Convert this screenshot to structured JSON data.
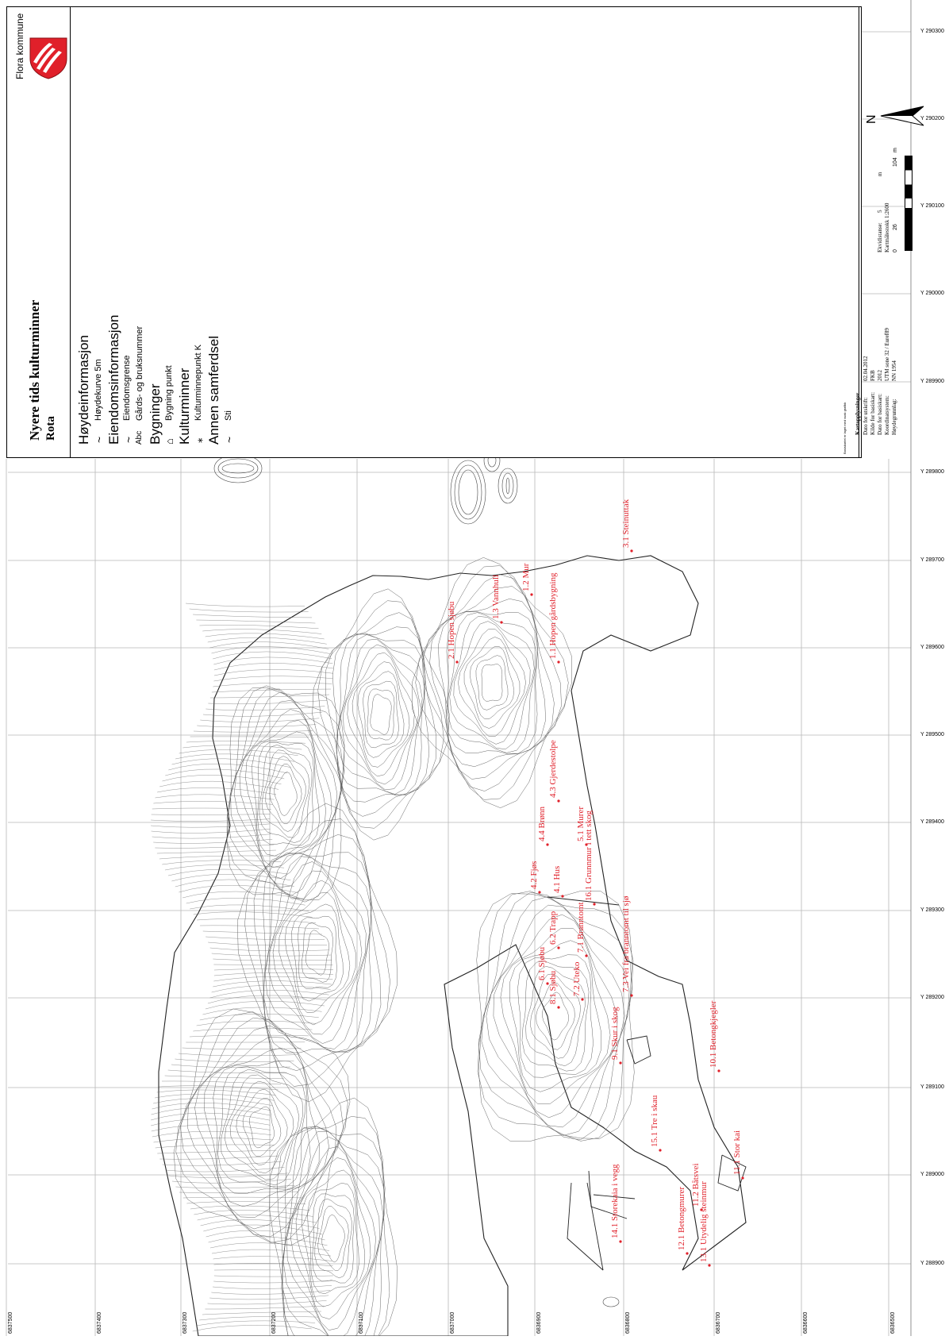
{
  "title_block": {
    "municipality": "Flora kommune",
    "map_title": "Nyere tids kulturminner",
    "map_subtitle": "Rota",
    "scale_bar_left": "0",
    "scale_bar_mid": "26",
    "scale_bar_right": "104",
    "scale_bar_unit": "m",
    "north_label": "N",
    "basemap_note": "Basiskartet er laget med svak grafikk",
    "kartopplysninger": {
      "heading": "Kartopplysninger",
      "rows": [
        {
          "label": "Dato for utskrift:",
          "value": "02.04.2012"
        },
        {
          "label": "Kilde for basiskart:",
          "value": "FKB"
        },
        {
          "label": "Dato for basiskart:",
          "value": "2012"
        },
        {
          "label": "Koordinatsystem:",
          "value": "UTM sone 32 / Euref89"
        },
        {
          "label": "Høydegrunnlag:",
          "value": "NN 1954"
        }
      ],
      "ekvidistanse_label": "Ekvidistanse:",
      "ekvidistanse_value": "5",
      "ekvidistanse_unit": "m",
      "scale_label": "Kartmålestokk 1:2600"
    }
  },
  "legend": {
    "groups": [
      {
        "heading": "Høydeinformasjon",
        "items": [
          {
            "symbol": "~",
            "text": "Høydekurve 5m"
          }
        ]
      },
      {
        "heading": "Eiendomsinformasjon",
        "items": [
          {
            "symbol": "~",
            "text": "Eiendomsgrense"
          },
          {
            "symbol": "Abc",
            "text": "Gårds- og bruksnummer"
          }
        ]
      },
      {
        "heading": "Bygninger",
        "items": [
          {
            "symbol": "⌂",
            "text": "Bygning punkt"
          }
        ]
      },
      {
        "heading": "Kulturminner",
        "items": [
          {
            "symbol": "⁎",
            "text": "Kulturminnepunkt K"
          }
        ]
      },
      {
        "heading": "Annen samferdsel",
        "items": [
          {
            "symbol": "~",
            "text": "Sti"
          }
        ]
      }
    ]
  },
  "grid": {
    "y_labels": [
      "Y 290300",
      "Y 290200",
      "Y 290100",
      "Y 290000",
      "Y 289900",
      "Y 289800",
      "Y 289700",
      "Y 289600",
      "Y 289500",
      "Y 289400",
      "Y 289300",
      "Y 289200",
      "Y 289100",
      "Y 289000",
      "Y 288900"
    ],
    "x_labels": [
      "6837500",
      "6837400",
      "6837300",
      "6837200",
      "6837100",
      "6837000",
      "6836900",
      "6836800",
      "6836700",
      "6836600",
      "6836500"
    ]
  },
  "features": [
    {
      "label": "1.3 Vannhull"
    },
    {
      "label": "1.2 Mur"
    },
    {
      "label": "1.1 Hopen gårdsbygning"
    },
    {
      "label": "2.1 Hopen sjøbu"
    },
    {
      "label": "3.1 Steinuttak"
    },
    {
      "label": "4.3 Gjerdestolpe"
    },
    {
      "label": "4.4 Brønn"
    },
    {
      "label": "5.1 Murer"
    },
    {
      "label": "4.2 Fjøs"
    },
    {
      "label": "4.1 Hus"
    },
    {
      "label": "16.1 Grunnmur i tett skog"
    },
    {
      "label": "7.3 Vei fra branntomt til sjø"
    },
    {
      "label": "6.2 Trapp"
    },
    {
      "label": "7.1 Branntomt"
    },
    {
      "label": "6.1 Sjøbu"
    },
    {
      "label": "8.1 Sjøbu"
    },
    {
      "label": "7.2 Uteko"
    },
    {
      "label": "9.1 Skur i skog"
    },
    {
      "label": "10.1 Betongkjegler"
    },
    {
      "label": "15.1 Tre i skau"
    },
    {
      "label": "11.1 Stor kai"
    },
    {
      "label": "14.1 Storekaia i vegg"
    },
    {
      "label": "12.1 Betongmurer"
    },
    {
      "label": "11.2 Båtsvei"
    },
    {
      "label": "13.1 Utydelig steinmur"
    }
  ],
  "colors": {
    "feature_label": "#e0202a",
    "grid": "#b8b8b8",
    "contour": "#555555",
    "coat_of_arms": "#e0202a"
  }
}
